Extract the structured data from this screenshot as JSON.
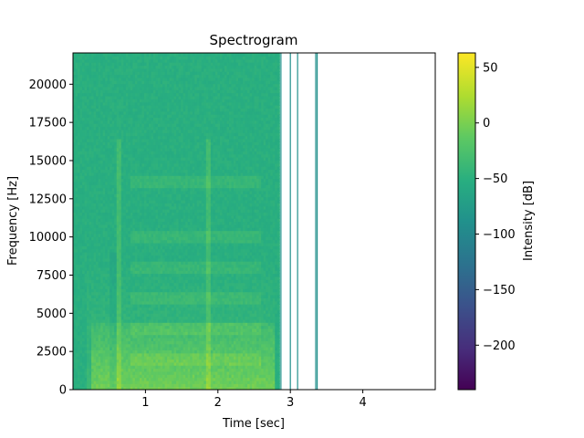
{
  "chart_data": {
    "type": "heatmap",
    "title": "Spectrogram",
    "xlabel": "Time [sec]",
    "ylabel": "Frequency [Hz]",
    "colorbar_label": "Intensity [dB]",
    "colormap": "viridis",
    "xlim": [
      0,
      5.0
    ],
    "ylim": [
      0,
      22050
    ],
    "x_ticks": [
      1,
      2,
      3,
      4
    ],
    "y_ticks": [
      0,
      2500,
      5000,
      7500,
      10000,
      12500,
      15000,
      17500,
      20000
    ],
    "clim": [
      -240,
      63
    ],
    "colorbar_ticks": [
      50,
      0,
      -50,
      -100,
      -150,
      -200
    ],
    "signal_end_sec": 2.85,
    "dense_spectrogram_description_values": {
      "background_db_range": [
        -60,
        -40
      ],
      "low_freq_energy_db": [
        20,
        45
      ],
      "harmonic_bands_hz": [
        2000,
        4000,
        6000,
        8000,
        10000,
        13600
      ],
      "transient_times_sec": [
        0.63,
        1.88
      ]
    },
    "sparse_columns_sec": [
      2.87,
      3.0,
      3.1,
      3.35,
      3.37
    ]
  }
}
